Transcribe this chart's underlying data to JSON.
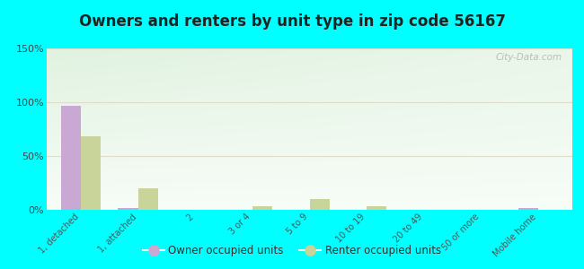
{
  "title": "Owners and renters by unit type in zip code 56167",
  "categories": [
    "1, detached",
    "1, attached",
    "2",
    "3 or 4",
    "5 to 9",
    "10 to 19",
    "20 to 49",
    "50 or more",
    "Mobile home"
  ],
  "owner_values": [
    97,
    2,
    0,
    0,
    0,
    0,
    0,
    0,
    2
  ],
  "renter_values": [
    68,
    20,
    0,
    3,
    10,
    3,
    0,
    0,
    0
  ],
  "owner_color": "#c9a8d4",
  "renter_color": "#c8d49a",
  "ylim": [
    0,
    150
  ],
  "yticks": [
    0,
    50,
    100,
    150
  ],
  "ytick_labels": [
    "0%",
    "50%",
    "100%",
    "150%"
  ],
  "background_color": "#00ffff",
  "grid_color": "#ddddcc",
  "watermark": "City-Data.com",
  "legend_owner": "Owner occupied units",
  "legend_renter": "Renter occupied units",
  "bar_width": 0.35,
  "title_fontsize": 12,
  "title_color": "#222222"
}
